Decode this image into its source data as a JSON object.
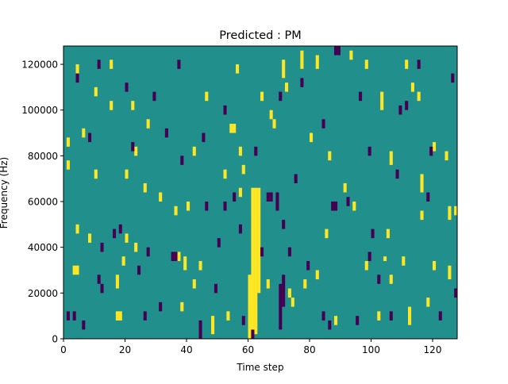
{
  "chart_data": {
    "type": "heatmap",
    "title": "Predicted : PM",
    "xlabel": "Time step",
    "ylabel": "Frequency (Hz)",
    "xlim": [
      0,
      128
    ],
    "ylim": [
      0,
      128000
    ],
    "x_ticks": [
      0,
      20,
      40,
      60,
      80,
      100,
      120
    ],
    "y_ticks": [
      0,
      20000,
      40000,
      60000,
      80000,
      100000,
      120000
    ],
    "n_time_steps": 128,
    "n_freq_bins": 64,
    "grid": false,
    "colors": {
      "background": "#21908d",
      "high": "#fde725",
      "low": "#440154"
    },
    "cells": [
      {
        "t": 60,
        "f0": 0,
        "f1": 28000,
        "v": "high"
      },
      {
        "t": 61,
        "f0": 0,
        "f1": 66000,
        "v": "high"
      },
      {
        "t": 62,
        "f0": 2000,
        "f1": 66000,
        "v": "high"
      },
      {
        "t": 63,
        "f0": 20000,
        "f1": 66000,
        "v": "high"
      },
      {
        "t": 55,
        "f0": 90000,
        "f1": 94000,
        "v": "high"
      },
      {
        "t": 54,
        "f0": 90000,
        "f1": 94000,
        "v": "high"
      },
      {
        "t": 57,
        "f0": 62000,
        "f1": 66000,
        "v": "high"
      },
      {
        "t": 17,
        "f0": 8000,
        "f1": 12000,
        "v": "high"
      },
      {
        "t": 18,
        "f0": 8000,
        "f1": 12000,
        "v": "high"
      },
      {
        "t": 17,
        "f0": 22000,
        "f1": 28000,
        "v": "high"
      },
      {
        "t": 19,
        "f0": 32000,
        "f1": 36000,
        "v": "high"
      },
      {
        "t": 3,
        "f0": 28000,
        "f1": 32000,
        "v": "high"
      },
      {
        "t": 4,
        "f0": 28000,
        "f1": 32000,
        "v": "high"
      },
      {
        "t": 42,
        "f0": 22000,
        "f1": 26000,
        "v": "high"
      },
      {
        "t": 48,
        "f0": 2000,
        "f1": 10000,
        "v": "high"
      },
      {
        "t": 73,
        "f0": 18000,
        "f1": 22000,
        "v": "high"
      },
      {
        "t": 74,
        "f0": 14000,
        "f1": 18000,
        "v": "high"
      },
      {
        "t": 88,
        "f0": 6000,
        "f1": 10000,
        "v": "high"
      },
      {
        "t": 102,
        "f0": 8000,
        "f1": 12000,
        "v": "high"
      },
      {
        "t": 112,
        "f0": 6000,
        "f1": 14000,
        "v": "high"
      },
      {
        "t": 118,
        "f0": 14000,
        "f1": 18000,
        "v": "high"
      },
      {
        "t": 125,
        "f0": 26000,
        "f1": 32000,
        "v": "high"
      },
      {
        "t": 106,
        "f0": 24000,
        "f1": 28000,
        "v": "high"
      },
      {
        "t": 104,
        "f0": 34000,
        "f1": 36000,
        "v": "high"
      },
      {
        "t": 105,
        "f0": 44000,
        "f1": 48000,
        "v": "high"
      },
      {
        "t": 91,
        "f0": 64000,
        "f1": 68000,
        "v": "high"
      },
      {
        "t": 94,
        "f0": 56000,
        "f1": 60000,
        "v": "high"
      },
      {
        "t": 106,
        "f0": 76000,
        "f1": 82000,
        "v": "high"
      },
      {
        "t": 116,
        "f0": 52000,
        "f1": 56000,
        "v": "high"
      },
      {
        "t": 116,
        "f0": 64000,
        "f1": 72000,
        "v": "high"
      },
      {
        "t": 120,
        "f0": 82000,
        "f1": 86000,
        "v": "high"
      },
      {
        "t": 124,
        "f0": 78000,
        "f1": 82000,
        "v": "high"
      },
      {
        "t": 125,
        "f0": 52000,
        "f1": 58000,
        "v": "high"
      },
      {
        "t": 115,
        "f0": 104000,
        "f1": 108000,
        "v": "high"
      },
      {
        "t": 113,
        "f0": 108000,
        "f1": 112000,
        "v": "high"
      },
      {
        "t": 111,
        "f0": 118000,
        "f1": 122000,
        "v": "high"
      },
      {
        "t": 98,
        "f0": 118000,
        "f1": 122000,
        "v": "high"
      },
      {
        "t": 103,
        "f0": 100000,
        "f1": 108000,
        "v": "high"
      },
      {
        "t": 93,
        "f0": 122000,
        "f1": 126000,
        "v": "high"
      },
      {
        "t": 82,
        "f0": 118000,
        "f1": 124000,
        "v": "high"
      },
      {
        "t": 77,
        "f0": 118000,
        "f1": 126000,
        "v": "high"
      },
      {
        "t": 72,
        "f0": 108000,
        "f1": 112000,
        "v": "high"
      },
      {
        "t": 71,
        "f0": 114000,
        "f1": 122000,
        "v": "high"
      },
      {
        "t": 68,
        "f0": 92000,
        "f1": 96000,
        "v": "high"
      },
      {
        "t": 80,
        "f0": 86000,
        "f1": 90000,
        "v": "high"
      },
      {
        "t": 86,
        "f0": 78000,
        "f1": 82000,
        "v": "high"
      },
      {
        "t": 67,
        "f0": 96000,
        "f1": 100000,
        "v": "high"
      },
      {
        "t": 64,
        "f0": 104000,
        "f1": 108000,
        "v": "high"
      },
      {
        "t": 57,
        "f0": 80000,
        "f1": 84000,
        "v": "high"
      },
      {
        "t": 56,
        "f0": 116000,
        "f1": 120000,
        "v": "high"
      },
      {
        "t": 58,
        "f0": 72000,
        "f1": 76000,
        "v": "high"
      },
      {
        "t": 52,
        "f0": 70000,
        "f1": 74000,
        "v": "high"
      },
      {
        "t": 46,
        "f0": 104000,
        "f1": 108000,
        "v": "high"
      },
      {
        "t": 42,
        "f0": 80000,
        "f1": 84000,
        "v": "high"
      },
      {
        "t": 40,
        "f0": 56000,
        "f1": 60000,
        "v": "high"
      },
      {
        "t": 36,
        "f0": 54000,
        "f1": 58000,
        "v": "high"
      },
      {
        "t": 31,
        "f0": 60000,
        "f1": 64000,
        "v": "high"
      },
      {
        "t": 26,
        "f0": 64000,
        "f1": 68000,
        "v": "high"
      },
      {
        "t": 23,
        "f0": 80000,
        "f1": 84000,
        "v": "high"
      },
      {
        "t": 27,
        "f0": 92000,
        "f1": 96000,
        "v": "high"
      },
      {
        "t": 22,
        "f0": 100000,
        "f1": 104000,
        "v": "high"
      },
      {
        "t": 15,
        "f0": 100000,
        "f1": 104000,
        "v": "high"
      },
      {
        "t": 10,
        "f0": 106000,
        "f1": 110000,
        "v": "high"
      },
      {
        "t": 15,
        "f0": 118000,
        "f1": 122000,
        "v": "high"
      },
      {
        "t": 4,
        "f0": 116000,
        "f1": 120000,
        "v": "high"
      },
      {
        "t": 6,
        "f0": 88000,
        "f1": 92000,
        "v": "high"
      },
      {
        "t": 1,
        "f0": 84000,
        "f1": 88000,
        "v": "high"
      },
      {
        "t": 1,
        "f0": 74000,
        "f1": 78000,
        "v": "high"
      },
      {
        "t": 10,
        "f0": 70000,
        "f1": 74000,
        "v": "high"
      },
      {
        "t": 20,
        "f0": 70000,
        "f1": 74000,
        "v": "high"
      },
      {
        "t": 4,
        "f0": 46000,
        "f1": 50000,
        "v": "high"
      },
      {
        "t": 8,
        "f0": 42000,
        "f1": 46000,
        "v": "high"
      },
      {
        "t": 20,
        "f0": 42000,
        "f1": 46000,
        "v": "high"
      },
      {
        "t": 23,
        "f0": 38000,
        "f1": 42000,
        "v": "high"
      },
      {
        "t": 37,
        "f0": 34000,
        "f1": 38000,
        "v": "high"
      },
      {
        "t": 39,
        "f0": 30000,
        "f1": 36000,
        "v": "high"
      },
      {
        "t": 38,
        "f0": 12000,
        "f1": 16000,
        "v": "high"
      },
      {
        "t": 44,
        "f0": 30000,
        "f1": 34000,
        "v": "high"
      },
      {
        "t": 53,
        "f0": 8000,
        "f1": 12000,
        "v": "high"
      },
      {
        "t": 66,
        "f0": 22000,
        "f1": 26000,
        "v": "high"
      },
      {
        "t": 78,
        "f0": 22000,
        "f1": 26000,
        "v": "high"
      },
      {
        "t": 82,
        "f0": 26000,
        "f1": 30000,
        "v": "high"
      },
      {
        "t": 85,
        "f0": 44000,
        "f1": 48000,
        "v": "high"
      },
      {
        "t": 98,
        "f0": 30000,
        "f1": 34000,
        "v": "high"
      },
      {
        "t": 110,
        "f0": 32000,
        "f1": 36000,
        "v": "high"
      },
      {
        "t": 120,
        "f0": 30000,
        "f1": 34000,
        "v": "high"
      },
      {
        "t": 127,
        "f0": 54000,
        "f1": 58000,
        "v": "high"
      },
      {
        "t": 70,
        "f0": 4000,
        "f1": 24000,
        "v": "low"
      },
      {
        "t": 71,
        "f0": 14000,
        "f1": 28000,
        "v": "low"
      },
      {
        "t": 69,
        "f0": 56000,
        "f1": 64000,
        "v": "low"
      },
      {
        "t": 66,
        "f0": 60000,
        "f1": 64000,
        "v": "low"
      },
      {
        "t": 67,
        "f0": 60000,
        "f1": 64000,
        "v": "low"
      },
      {
        "t": 62,
        "f0": 80000,
        "f1": 84000,
        "v": "low"
      },
      {
        "t": 52,
        "f0": 56000,
        "f1": 60000,
        "v": "low"
      },
      {
        "t": 46,
        "f0": 56000,
        "f1": 60000,
        "v": "low"
      },
      {
        "t": 36,
        "f0": 34000,
        "f1": 38000,
        "v": "low"
      },
      {
        "t": 35,
        "f0": 34000,
        "f1": 38000,
        "v": "low"
      },
      {
        "t": 27,
        "f0": 36000,
        "f1": 40000,
        "v": "low"
      },
      {
        "t": 24,
        "f0": 28000,
        "f1": 32000,
        "v": "low"
      },
      {
        "t": 18,
        "f0": 46000,
        "f1": 50000,
        "v": "low"
      },
      {
        "t": 16,
        "f0": 44000,
        "f1": 48000,
        "v": "low"
      },
      {
        "t": 12,
        "f0": 38000,
        "f1": 42000,
        "v": "low"
      },
      {
        "t": 11,
        "f0": 24000,
        "f1": 28000,
        "v": "low"
      },
      {
        "t": 12,
        "f0": 20000,
        "f1": 24000,
        "v": "low"
      },
      {
        "t": 3,
        "f0": 8000,
        "f1": 12000,
        "v": "low"
      },
      {
        "t": 1,
        "f0": 8000,
        "f1": 12000,
        "v": "low"
      },
      {
        "t": 6,
        "f0": 4000,
        "f1": 8000,
        "v": "low"
      },
      {
        "t": 26,
        "f0": 8000,
        "f1": 12000,
        "v": "low"
      },
      {
        "t": 31,
        "f0": 12000,
        "f1": 16000,
        "v": "low"
      },
      {
        "t": 44,
        "f0": 0,
        "f1": 8000,
        "v": "low"
      },
      {
        "t": 58,
        "f0": 6000,
        "f1": 10000,
        "v": "low"
      },
      {
        "t": 50,
        "f0": 40000,
        "f1": 44000,
        "v": "low"
      },
      {
        "t": 49,
        "f0": 20000,
        "f1": 24000,
        "v": "low"
      },
      {
        "t": 57,
        "f0": 46000,
        "f1": 50000,
        "v": "low"
      },
      {
        "t": 55,
        "f0": 60000,
        "f1": 64000,
        "v": "low"
      },
      {
        "t": 71,
        "f0": 48000,
        "f1": 52000,
        "v": "low"
      },
      {
        "t": 73,
        "f0": 36000,
        "f1": 40000,
        "v": "low"
      },
      {
        "t": 75,
        "f0": 68000,
        "f1": 72000,
        "v": "low"
      },
      {
        "t": 79,
        "f0": 30000,
        "f1": 34000,
        "v": "low"
      },
      {
        "t": 84,
        "f0": 8000,
        "f1": 12000,
        "v": "low"
      },
      {
        "t": 86,
        "f0": 4000,
        "f1": 8000,
        "v": "low"
      },
      {
        "t": 87,
        "f0": 56000,
        "f1": 60000,
        "v": "low"
      },
      {
        "t": 88,
        "f0": 56000,
        "f1": 60000,
        "v": "low"
      },
      {
        "t": 92,
        "f0": 58000,
        "f1": 62000,
        "v": "low"
      },
      {
        "t": 95,
        "f0": 6000,
        "f1": 10000,
        "v": "low"
      },
      {
        "t": 99,
        "f0": 34000,
        "f1": 38000,
        "v": "low"
      },
      {
        "t": 100,
        "f0": 44000,
        "f1": 48000,
        "v": "low"
      },
      {
        "t": 102,
        "f0": 24000,
        "f1": 28000,
        "v": "low"
      },
      {
        "t": 106,
        "f0": 8000,
        "f1": 12000,
        "v": "low"
      },
      {
        "t": 108,
        "f0": 70000,
        "f1": 74000,
        "v": "low"
      },
      {
        "t": 111,
        "f0": 100000,
        "f1": 104000,
        "v": "low"
      },
      {
        "t": 109,
        "f0": 98000,
        "f1": 102000,
        "v": "low"
      },
      {
        "t": 115,
        "f0": 118000,
        "f1": 122000,
        "v": "low"
      },
      {
        "t": 122,
        "f0": 8000,
        "f1": 12000,
        "v": "low"
      },
      {
        "t": 118,
        "f0": 60000,
        "f1": 64000,
        "v": "low"
      },
      {
        "t": 126,
        "f0": 112000,
        "f1": 116000,
        "v": "low"
      },
      {
        "t": 127,
        "f0": 18000,
        "f1": 22000,
        "v": "low"
      },
      {
        "t": 119,
        "f0": 80000,
        "f1": 84000,
        "v": "low"
      },
      {
        "t": 99,
        "f0": 80000,
        "f1": 84000,
        "v": "low"
      },
      {
        "t": 96,
        "f0": 104000,
        "f1": 108000,
        "v": "low"
      },
      {
        "t": 89,
        "f0": 124000,
        "f1": 128000,
        "v": "low"
      },
      {
        "t": 88,
        "f0": 124000,
        "f1": 128000,
        "v": "low"
      },
      {
        "t": 84,
        "f0": 92000,
        "f1": 96000,
        "v": "low"
      },
      {
        "t": 77,
        "f0": 110000,
        "f1": 114000,
        "v": "low"
      },
      {
        "t": 70,
        "f0": 104000,
        "f1": 108000,
        "v": "low"
      },
      {
        "t": 52,
        "f0": 98000,
        "f1": 102000,
        "v": "low"
      },
      {
        "t": 45,
        "f0": 86000,
        "f1": 90000,
        "v": "low"
      },
      {
        "t": 37,
        "f0": 118000,
        "f1": 122000,
        "v": "low"
      },
      {
        "t": 29,
        "f0": 104000,
        "f1": 108000,
        "v": "low"
      },
      {
        "t": 20,
        "f0": 108000,
        "f1": 112000,
        "v": "low"
      },
      {
        "t": 11,
        "f0": 118000,
        "f1": 122000,
        "v": "low"
      },
      {
        "t": 4,
        "f0": 112000,
        "f1": 116000,
        "v": "low"
      },
      {
        "t": 8,
        "f0": 86000,
        "f1": 90000,
        "v": "low"
      },
      {
        "t": 22,
        "f0": 82000,
        "f1": 86000,
        "v": "low"
      },
      {
        "t": 33,
        "f0": 88000,
        "f1": 92000,
        "v": "low"
      },
      {
        "t": 38,
        "f0": 76000,
        "f1": 80000,
        "v": "low"
      },
      {
        "t": 61,
        "f0": 0,
        "f1": 4000,
        "v": "low"
      },
      {
        "t": 64,
        "f0": 36000,
        "f1": 40000,
        "v": "low"
      }
    ]
  }
}
